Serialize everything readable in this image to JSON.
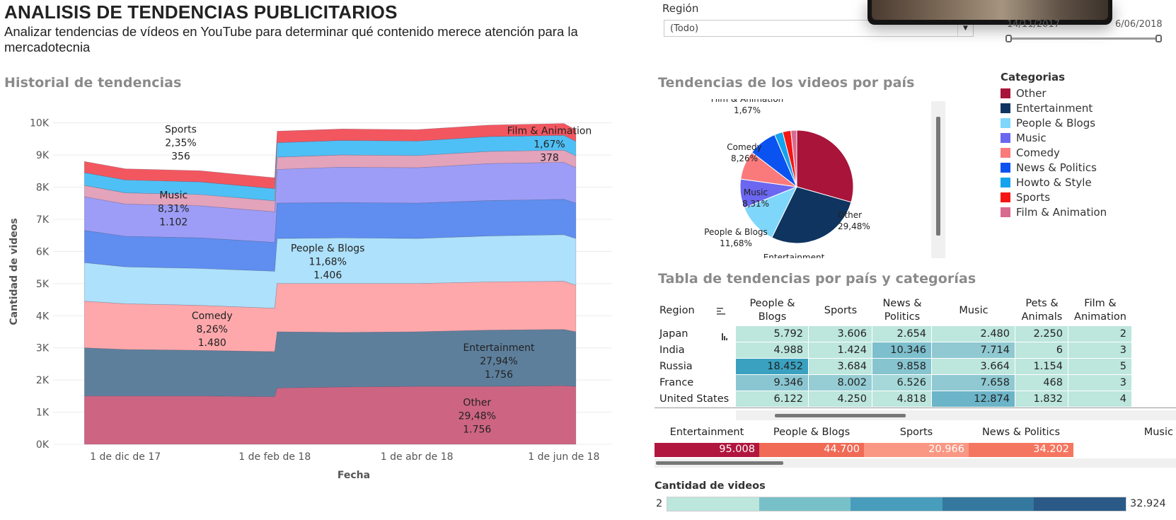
{
  "header": {
    "title": "ANALISIS DE TENDENCIAS PUBLICITARIOS",
    "subtitle": "Analizar tendencias de vídeos en YouTube para determinar qué contenido merece atención para la mercadotecnia"
  },
  "filters": {
    "region_label": "Región",
    "region_value": "(Todo)",
    "date_start": "14/11/2017",
    "date_end": "6/06/2018"
  },
  "sections": {
    "history": "Historial de tendencias",
    "pie": "Tendencias de los videos por país",
    "table": "Tabla de tendencias por país y categorías"
  },
  "legend": {
    "title": "Categorias",
    "items": [
      {
        "label": "Other",
        "color": "#a8143a"
      },
      {
        "label": "Entertainment",
        "color": "#0f3460"
      },
      {
        "label": "People & Blogs",
        "color": "#7fd6fb"
      },
      {
        "label": "Music",
        "color": "#6b67f0"
      },
      {
        "label": "Comedy",
        "color": "#fa7a7b"
      },
      {
        "label": "News & Politics",
        "color": "#0b53f0"
      },
      {
        "label": "Howto & Style",
        "color": "#14a3ef"
      },
      {
        "label": "Sports",
        "color": "#f51515"
      },
      {
        "label": "Film & Animation",
        "color": "#d86a8f"
      }
    ]
  },
  "chart_data": [
    {
      "type": "area",
      "stacked": true,
      "xlabel": "Fecha",
      "ylabel": "Cantidad de videos",
      "ylim": [
        0,
        10300
      ],
      "yticks": [
        0,
        1000,
        2000,
        3000,
        4000,
        5000,
        6000,
        7000,
        8000,
        9000,
        10000
      ],
      "ytick_labels": [
        "0K",
        "1K",
        "2K",
        "3K",
        "4K",
        "5K",
        "6K",
        "7K",
        "8K",
        "9K",
        "10K"
      ],
      "x": [
        "2017-11-14",
        "2017-12-01",
        "2018-01-01",
        "2018-02-01",
        "2018-02-02",
        "2018-03-01",
        "2018-04-01",
        "2018-05-01",
        "2018-06-01",
        "2018-06-06"
      ],
      "xtick_labels": [
        "1 de dic de 17",
        "1 de feb de 18",
        "1 de abr de 18",
        "1 de jun de 18"
      ],
      "xtick_dates": [
        "2017-12-01",
        "2018-02-01",
        "2018-04-01",
        "2018-06-01"
      ],
      "grid": true,
      "series": [
        {
          "name": "Other",
          "color": "#cd6582",
          "values": [
            1500,
            1500,
            1500,
            1480,
            1750,
            1780,
            1800,
            1800,
            1820,
            1800
          ]
        },
        {
          "name": "Entertainment",
          "color": "#5d7f9c",
          "values": [
            1500,
            1450,
            1420,
            1400,
            1750,
            1700,
            1700,
            1750,
            1750,
            1700
          ]
        },
        {
          "name": "Comedy",
          "color": "#fea8ab",
          "values": [
            1450,
            1420,
            1400,
            1350,
            1500,
            1520,
            1500,
            1500,
            1500,
            1450
          ]
        },
        {
          "name": "People & Blogs",
          "color": "#aee1fb",
          "values": [
            1200,
            1150,
            1150,
            1150,
            1400,
            1420,
            1400,
            1430,
            1450,
            1450
          ]
        },
        {
          "name": "News & Politics",
          "color": "#5f8ef0",
          "values": [
            1000,
            950,
            950,
            900,
            1100,
            1100,
            1100,
            1100,
            1100,
            1100
          ]
        },
        {
          "name": "Music",
          "color": "#9d9df7",
          "values": [
            1050,
            1000,
            1000,
            950,
            1050,
            1100,
            1100,
            1150,
            1150,
            1100
          ]
        },
        {
          "name": "Film & Animation",
          "color": "#e3a3bb",
          "values": [
            350,
            350,
            350,
            340,
            380,
            380,
            380,
            380,
            380,
            370
          ]
        },
        {
          "name": "Howto & Style",
          "color": "#4fc0f5",
          "values": [
            400,
            400,
            390,
            380,
            450,
            450,
            450,
            460,
            460,
            450
          ]
        },
        {
          "name": "Sports",
          "color": "#f25760",
          "values": [
            350,
            350,
            350,
            340,
            360,
            360,
            360,
            360,
            370,
            360
          ]
        }
      ],
      "annotations": [
        {
          "label": "Sports",
          "pct": "2,35%",
          "value": "356",
          "date": "2017-12-24",
          "y": 9700
        },
        {
          "label": "Music",
          "pct": "8,31%",
          "value": "1.102",
          "date": "2017-12-21",
          "y": 7650
        },
        {
          "label": "People & Blogs",
          "pct": "11,68%",
          "value": "1.406",
          "date": "2018-02-23",
          "y": 6000
        },
        {
          "label": "Comedy",
          "pct": "8,26%",
          "value": "1.480",
          "date": "2018-01-06",
          "y": 3900
        },
        {
          "label": "Entertainment",
          "pct": "27,94%",
          "value": "1.756",
          "date": "2018-05-05",
          "y": 2900
        },
        {
          "label": "Other",
          "pct": "29,48%",
          "value": "1.756",
          "date": "2018-04-26",
          "y": 1200
        },
        {
          "label": "Film & Animation",
          "pct": "1,67%",
          "value": "378",
          "date": "2018-05-26",
          "y": 9650
        }
      ]
    },
    {
      "type": "pie",
      "slices": [
        {
          "label": "Other",
          "pct": "29,48%",
          "value": 29.48,
          "color": "#a8143a"
        },
        {
          "label": "Entertainment",
          "pct": "27,94%",
          "value": 27.94,
          "color": "#0f3460"
        },
        {
          "label": "People & Blogs",
          "pct": "11,68%",
          "value": 11.68,
          "color": "#7fd6fb"
        },
        {
          "label": "Music",
          "pct": "8,31%",
          "value": 8.31,
          "color": "#6b67f0"
        },
        {
          "label": "Comedy",
          "pct": "8,26%",
          "value": 8.26,
          "color": "#fa7a7b"
        },
        {
          "label": "News & Politics",
          "pct": "",
          "value": 8.2,
          "color": "#0b53f0"
        },
        {
          "label": "Howto & Style",
          "pct": "",
          "value": 2.4,
          "color": "#14a3ef"
        },
        {
          "label": "Sports",
          "pct": "",
          "value": 2.35,
          "color": "#f51515"
        },
        {
          "label": "Film & Animation",
          "pct": "1,67%",
          "value": 1.67,
          "color": "#d86a8f"
        }
      ]
    },
    {
      "type": "table",
      "region_header": "Region",
      "columns": [
        "People & Blogs",
        "Sports",
        "News & Politics",
        "Music",
        "Pets & Animals",
        "Film & Animation"
      ],
      "column_labels": [
        "People & Blogs",
        "Sports",
        "News &\nPolitics",
        "Music",
        "Pets & Animals",
        "Film &\nAnimation"
      ],
      "rows": [
        {
          "region": "Japan",
          "values": [
            "5.792",
            "3.606",
            "2.654",
            "2.480",
            "2.250",
            "2"
          ],
          "colors": [
            "#bde6dd",
            "#bde6dd",
            "#bde6dd",
            "#bde6dd",
            "#bde6dd",
            "#bde6dd"
          ]
        },
        {
          "region": "India",
          "values": [
            "4.988",
            "1.424",
            "10.346",
            "7.714",
            "6",
            "3"
          ],
          "colors": [
            "#bde6dd",
            "#bde6dd",
            "#7dbfcd",
            "#90c9d2",
            "#bde6dd",
            "#bde6dd"
          ]
        },
        {
          "region": "Russia",
          "values": [
            "18.452",
            "3.684",
            "9.858",
            "3.664",
            "1.154",
            "5"
          ],
          "colors": [
            "#3aa1c0",
            "#bde6dd",
            "#86c4cf",
            "#bde6dd",
            "#bde6dd",
            "#bde6dd"
          ]
        },
        {
          "region": "France",
          "values": [
            "9.346",
            "8.002",
            "6.526",
            "7.658",
            "468",
            "3"
          ],
          "colors": [
            "#8ac6d1",
            "#96cdd4",
            "#a6d8d9",
            "#90c9d2",
            "#bde6dd",
            "#bde6dd"
          ]
        },
        {
          "region": "United States",
          "values": [
            "6.122",
            "4.250",
            "4.818",
            "12.874",
            "1.832",
            "4"
          ],
          "colors": [
            "#bde6dd",
            "#bde6dd",
            "#bde6dd",
            "#6cb4c8",
            "#bde6dd",
            "#bde6dd"
          ]
        }
      ]
    },
    {
      "type": "table",
      "columns": [
        "Entertainment",
        "People & Blogs",
        "Sports",
        "News & Politics",
        "Music"
      ],
      "values": [
        "95.008",
        "44.700",
        "20.966",
        "34.202",
        ""
      ],
      "colors": [
        "#b1163e",
        "#f06a55",
        "#fa9784",
        "#f57660",
        "#f57660"
      ]
    }
  ],
  "color_scale": {
    "title": "Cantidad de videos",
    "min": "2",
    "max": "32.924",
    "colors": [
      "#bde6dd",
      "#78c0c8",
      "#479dbb",
      "#34789f",
      "#2b5a88"
    ]
  }
}
